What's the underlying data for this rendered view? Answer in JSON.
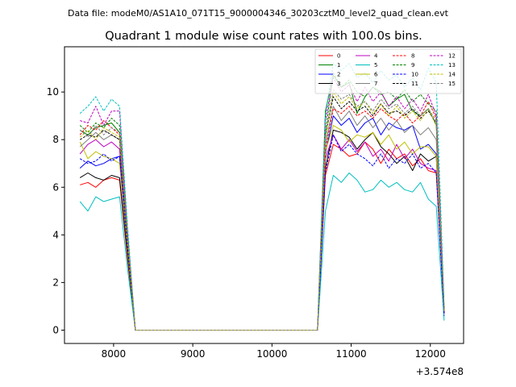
{
  "chart_data": {
    "type": "line",
    "suptitle": "Data file: modeM0/AS1A10_071T15_9000004346_30203cztM0_level2_quad_clean.evt",
    "title": "Quadrant 1 module wise count rates with 100.0s bins.",
    "xlabel": "",
    "ylabel": "",
    "x_offset_label": "+3.574e8",
    "xlim": [
      7380,
      12420
    ],
    "ylim": [
      -0.56,
      11.9
    ],
    "x_ticks": [
      {
        "value": 8000,
        "label": "8000"
      },
      {
        "value": 9000,
        "label": "9000"
      },
      {
        "value": 10000,
        "label": "10000"
      },
      {
        "value": 11000,
        "label": "11000"
      },
      {
        "value": 12000,
        "label": "12000"
      }
    ],
    "y_ticks": [
      {
        "value": 0,
        "label": "0"
      },
      {
        "value": 2,
        "label": "2"
      },
      {
        "value": 4,
        "label": "4"
      },
      {
        "value": 6,
        "label": "6"
      },
      {
        "value": 8,
        "label": "8"
      },
      {
        "value": 10,
        "label": "10"
      }
    ],
    "x": [
      7575,
      7675,
      7775,
      7875,
      7975,
      8075,
      8175,
      8275,
      8375,
      8475,
      8575,
      8675,
      8775,
      8875,
      8975,
      9075,
      9175,
      9275,
      9375,
      9475,
      9575,
      9675,
      9775,
      9875,
      9975,
      10075,
      10175,
      10275,
      10375,
      10475,
      10575,
      10675,
      10775,
      10875,
      10975,
      11075,
      11175,
      11275,
      11375,
      11475,
      11575,
      11675,
      11775,
      11875,
      11975,
      12075,
      12175
    ],
    "legend_position": "upper right",
    "series": [
      {
        "name": "0",
        "color": "#ff0000",
        "dash": "solid",
        "values": [
          6.1,
          6.2,
          6.0,
          6.3,
          6.4,
          6.3,
          3.0,
          0,
          0,
          0,
          0,
          0,
          0,
          0,
          0,
          0,
          0,
          0,
          0,
          0,
          0,
          0,
          0,
          0,
          0,
          0,
          0,
          0,
          0,
          0,
          0,
          6.5,
          7.8,
          7.6,
          7.3,
          7.4,
          7.9,
          7.6,
          7.0,
          7.6,
          7.2,
          7.4,
          6.9,
          7.2,
          6.7,
          6.6,
          0.7
        ]
      },
      {
        "name": "1",
        "color": "#008000",
        "dash": "solid",
        "values": [
          8.4,
          8.2,
          8.5,
          8.6,
          8.7,
          8.3,
          4.0,
          0,
          0,
          0,
          0,
          0,
          0,
          0,
          0,
          0,
          0,
          0,
          0,
          0,
          0,
          0,
          0,
          0,
          0,
          0,
          0,
          0,
          0,
          0,
          0,
          9.2,
          10.7,
          10.2,
          10.4,
          9.1,
          9.8,
          10.2,
          10.0,
          9.4,
          9.7,
          9.9,
          9.2,
          9.0,
          9.3,
          8.6,
          0.9
        ]
      },
      {
        "name": "2",
        "color": "#0000ff",
        "dash": "solid",
        "values": [
          6.8,
          7.1,
          6.9,
          7.0,
          7.2,
          7.3,
          3.4,
          0,
          0,
          0,
          0,
          0,
          0,
          0,
          0,
          0,
          0,
          0,
          0,
          0,
          0,
          0,
          0,
          0,
          0,
          0,
          0,
          0,
          0,
          0,
          0,
          7.4,
          9.0,
          8.6,
          8.9,
          8.3,
          8.7,
          8.9,
          8.2,
          8.7,
          8.5,
          8.4,
          8.6,
          7.6,
          7.8,
          7.4,
          0.8
        ]
      },
      {
        "name": "3",
        "color": "#000000",
        "dash": "solid",
        "values": [
          6.4,
          6.6,
          6.4,
          6.3,
          6.5,
          6.4,
          3.2,
          0,
          0,
          0,
          0,
          0,
          0,
          0,
          0,
          0,
          0,
          0,
          0,
          0,
          0,
          0,
          0,
          0,
          0,
          0,
          0,
          0,
          0,
          0,
          0,
          6.8,
          8.4,
          8.3,
          8.1,
          7.6,
          8.0,
          8.3,
          7.7,
          7.4,
          7.0,
          7.3,
          6.7,
          7.4,
          7.1,
          7.3,
          0.7
        ]
      },
      {
        "name": "4",
        "color": "#c000c0",
        "dash": "solid",
        "values": [
          7.4,
          7.8,
          8.0,
          7.7,
          7.9,
          7.6,
          3.6,
          0,
          0,
          0,
          0,
          0,
          0,
          0,
          0,
          0,
          0,
          0,
          0,
          0,
          0,
          0,
          0,
          0,
          0,
          0,
          0,
          0,
          0,
          0,
          0,
          7.2,
          8.2,
          7.6,
          8.0,
          7.5,
          7.9,
          7.3,
          7.6,
          7.1,
          7.8,
          7.2,
          7.6,
          7.0,
          6.8,
          6.7,
          0.7
        ]
      },
      {
        "name": "5",
        "color": "#00bfbf",
        "dash": "solid",
        "values": [
          5.4,
          5.0,
          5.6,
          5.4,
          5.5,
          5.6,
          2.6,
          0,
          0,
          0,
          0,
          0,
          0,
          0,
          0,
          0,
          0,
          0,
          0,
          0,
          0,
          0,
          0,
          0,
          0,
          0,
          0,
          0,
          0,
          0,
          0,
          5.0,
          6.5,
          6.2,
          6.6,
          6.3,
          5.8,
          5.9,
          6.3,
          6.0,
          6.2,
          5.9,
          5.8,
          6.2,
          5.5,
          5.2,
          0.4
        ]
      },
      {
        "name": "6",
        "color": "#bfbf00",
        "dash": "solid",
        "values": [
          7.9,
          7.2,
          7.5,
          7.3,
          7.2,
          7.0,
          3.4,
          0,
          0,
          0,
          0,
          0,
          0,
          0,
          0,
          0,
          0,
          0,
          0,
          0,
          0,
          0,
          0,
          0,
          0,
          0,
          0,
          0,
          0,
          0,
          0,
          7.5,
          8.6,
          8.4,
          7.9,
          8.2,
          8.1,
          8.3,
          7.8,
          8.2,
          7.6,
          7.9,
          7.4,
          7.7,
          7.7,
          7.3,
          0.8
        ]
      },
      {
        "name": "7",
        "color": "#808080",
        "dash": "solid",
        "values": [
          7.7,
          8.0,
          8.3,
          8.0,
          8.2,
          8.0,
          3.8,
          0,
          0,
          0,
          0,
          0,
          0,
          0,
          0,
          0,
          0,
          0,
          0,
          0,
          0,
          0,
          0,
          0,
          0,
          0,
          0,
          0,
          0,
          0,
          0,
          7.8,
          9.4,
          8.8,
          9.2,
          8.6,
          9.0,
          8.5,
          8.9,
          8.4,
          8.8,
          8.3,
          8.6,
          8.2,
          8.5,
          8.0,
          0.8
        ]
      },
      {
        "name": "8",
        "color": "#ff0000",
        "dash": "dashed",
        "values": [
          8.2,
          8.6,
          8.4,
          8.8,
          8.5,
          8.2,
          3.9,
          0,
          0,
          0,
          0,
          0,
          0,
          0,
          0,
          0,
          0,
          0,
          0,
          0,
          0,
          0,
          0,
          0,
          0,
          0,
          0,
          0,
          0,
          0,
          0,
          7.6,
          9.3,
          9.1,
          9.4,
          9.0,
          9.2,
          8.9,
          9.3,
          9.0,
          8.8,
          9.1,
          8.7,
          9.0,
          9.6,
          8.9,
          0.8
        ]
      },
      {
        "name": "9",
        "color": "#008000",
        "dash": "dashed",
        "values": [
          8.6,
          8.3,
          8.7,
          8.5,
          8.9,
          8.6,
          4.1,
          0,
          0,
          0,
          0,
          0,
          0,
          0,
          0,
          0,
          0,
          0,
          0,
          0,
          0,
          0,
          0,
          0,
          0,
          0,
          0,
          0,
          0,
          0,
          0,
          8.3,
          10.8,
          10.2,
          10.5,
          10.0,
          9.8,
          10.2,
          9.9,
          10.0,
          9.7,
          10.1,
          9.6,
          9.9,
          9.5,
          9.2,
          0.9
        ]
      },
      {
        "name": "10",
        "color": "#0000ff",
        "dash": "dashed",
        "values": [
          7.2,
          7.0,
          7.1,
          7.4,
          7.1,
          7.3,
          3.5,
          0,
          0,
          0,
          0,
          0,
          0,
          0,
          0,
          0,
          0,
          0,
          0,
          0,
          0,
          0,
          0,
          0,
          0,
          0,
          0,
          0,
          0,
          0,
          0,
          6.6,
          8.2,
          7.5,
          7.8,
          7.4,
          7.2,
          6.9,
          7.4,
          6.8,
          7.2,
          7.0,
          7.4,
          6.8,
          7.0,
          6.6,
          0.6
        ]
      },
      {
        "name": "11",
        "color": "#000000",
        "dash": "dashed",
        "values": [
          8.0,
          8.2,
          8.1,
          8.4,
          8.2,
          8.0,
          3.8,
          0,
          0,
          0,
          0,
          0,
          0,
          0,
          0,
          0,
          0,
          0,
          0,
          0,
          0,
          0,
          0,
          0,
          0,
          0,
          0,
          0,
          0,
          0,
          0,
          8.1,
          9.8,
          9.3,
          9.6,
          9.2,
          9.4,
          9.0,
          9.5,
          9.1,
          9.2,
          9.0,
          9.3,
          8.9,
          9.2,
          8.7,
          0.8
        ]
      },
      {
        "name": "12",
        "color": "#c000c0",
        "dash": "dashed",
        "values": [
          8.8,
          8.7,
          9.4,
          8.6,
          9.2,
          9.2,
          4.2,
          0,
          0,
          0,
          0,
          0,
          0,
          0,
          0,
          0,
          0,
          0,
          0,
          0,
          0,
          0,
          0,
          0,
          0,
          0,
          0,
          0,
          0,
          0,
          0,
          8.8,
          10.6,
          10.0,
          10.3,
          9.6,
          10.2,
          9.6,
          10.0,
          9.4,
          9.8,
          9.3,
          9.7,
          9.2,
          9.9,
          9.0,
          0.9
        ]
      },
      {
        "name": "13",
        "color": "#00bfbf",
        "dash": "dashed",
        "values": [
          9.1,
          9.4,
          9.8,
          9.2,
          9.7,
          9.4,
          4.4,
          0,
          0,
          0,
          0,
          0,
          0,
          0,
          0,
          0,
          0,
          0,
          0,
          0,
          0,
          0,
          0,
          0,
          0,
          0,
          0,
          0,
          0,
          0,
          0,
          9.0,
          11.2,
          10.9,
          11.2,
          10.6,
          10.8,
          10.4,
          10.9,
          10.5,
          10.7,
          10.2,
          10.6,
          10.1,
          11.0,
          10.4,
          1.0
        ]
      },
      {
        "name": "14",
        "color": "#bfbf00",
        "dash": "dashed",
        "values": [
          8.1,
          8.4,
          8.0,
          8.5,
          8.3,
          8.1,
          3.9,
          0,
          0,
          0,
          0,
          0,
          0,
          0,
          0,
          0,
          0,
          0,
          0,
          0,
          0,
          0,
          0,
          0,
          0,
          0,
          0,
          0,
          0,
          0,
          0,
          8.0,
          10.0,
          9.5,
          9.8,
          9.3,
          9.6,
          9.1,
          9.5,
          9.0,
          9.4,
          8.9,
          9.2,
          8.8,
          9.3,
          8.6,
          0.8
        ]
      },
      {
        "name": "15",
        "color": "#808080",
        "dash": "dashed",
        "values": [
          8.4,
          8.1,
          8.6,
          8.2,
          8.5,
          8.3,
          4.0,
          0,
          0,
          0,
          0,
          0,
          0,
          0,
          0,
          0,
          0,
          0,
          0,
          0,
          0,
          0,
          0,
          0,
          0,
          0,
          0,
          0,
          0,
          0,
          0,
          8.2,
          10.1,
          9.7,
          9.9,
          9.4,
          9.6,
          9.2,
          9.7,
          9.3,
          9.5,
          9.1,
          9.4,
          9.0,
          9.3,
          8.8,
          0.8
        ]
      }
    ]
  }
}
